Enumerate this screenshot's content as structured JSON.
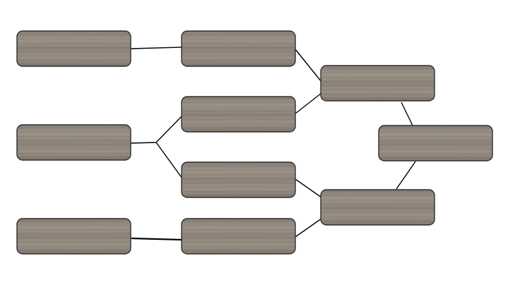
{
  "diagram": {
    "box_fill": "#8c8278",
    "box_fill_light": "#9f968c",
    "box_fill_dark": "#766d64",
    "border_color": "#2f2f2f",
    "line_color": "#000000",
    "background": "#ffffff",
    "nodes": [
      {
        "id": "n1",
        "label": ""
      },
      {
        "id": "n2",
        "label": ""
      },
      {
        "id": "n3",
        "label": ""
      },
      {
        "id": "n4",
        "label": ""
      },
      {
        "id": "n5",
        "label": ""
      },
      {
        "id": "n6",
        "label": ""
      },
      {
        "id": "n7",
        "label": ""
      },
      {
        "id": "n8",
        "label": ""
      },
      {
        "id": "n9",
        "label": ""
      },
      {
        "id": "n10",
        "label": ""
      }
    ],
    "edges": [
      {
        "from": "n1",
        "to": "n4"
      },
      {
        "from": "n2",
        "to": "n5"
      },
      {
        "from": "n2",
        "to": "n6"
      },
      {
        "from": "n3",
        "to": "n7"
      },
      {
        "from": "n4",
        "to": "n8"
      },
      {
        "from": "n5",
        "to": "n8"
      },
      {
        "from": "n6",
        "to": "n9"
      },
      {
        "from": "n7",
        "to": "n9"
      },
      {
        "from": "n8",
        "to": "n10"
      },
      {
        "from": "n9",
        "to": "n10"
      }
    ]
  }
}
